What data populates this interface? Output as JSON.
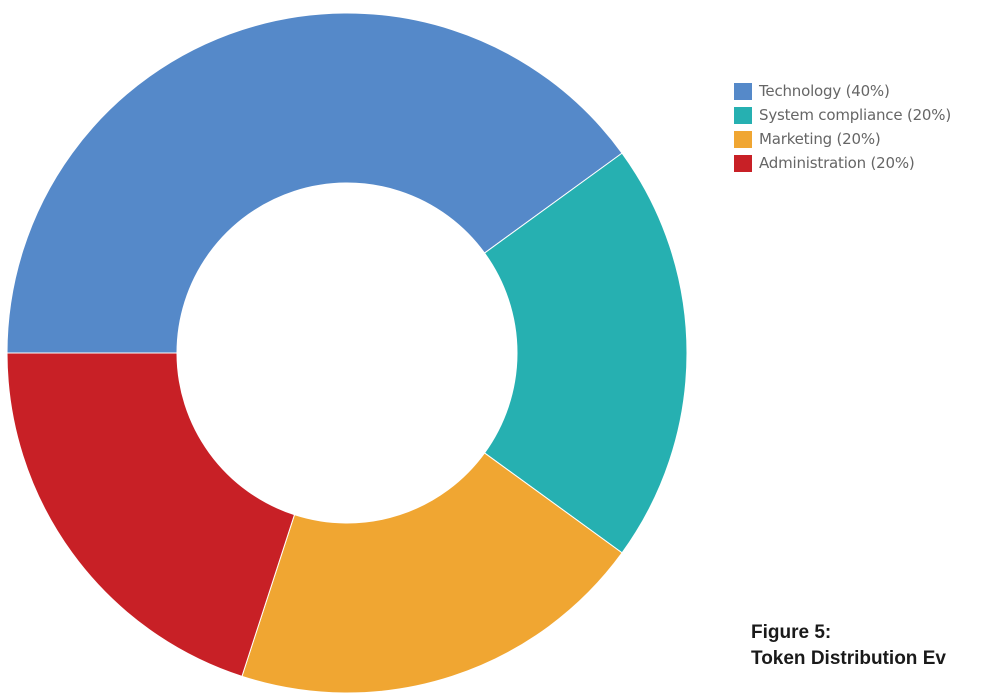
{
  "chart_data": {
    "type": "pie",
    "variant": "donut",
    "categories": [
      "Technology",
      "System compliance",
      "Marketing",
      "Administration"
    ],
    "values": [
      40,
      20,
      20,
      20
    ],
    "unit": "%",
    "colors": [
      "#5589c9",
      "#26b0b1",
      "#f0a632",
      "#c82026"
    ],
    "legend": {
      "position": "top-right",
      "entries": [
        "Technology (40%)",
        "System compliance (20%)",
        "Marketing (20%)",
        "Administration (20%)"
      ]
    }
  },
  "caption": {
    "line1": "Figure 5:",
    "line2": "Token Distribution Ev"
  }
}
